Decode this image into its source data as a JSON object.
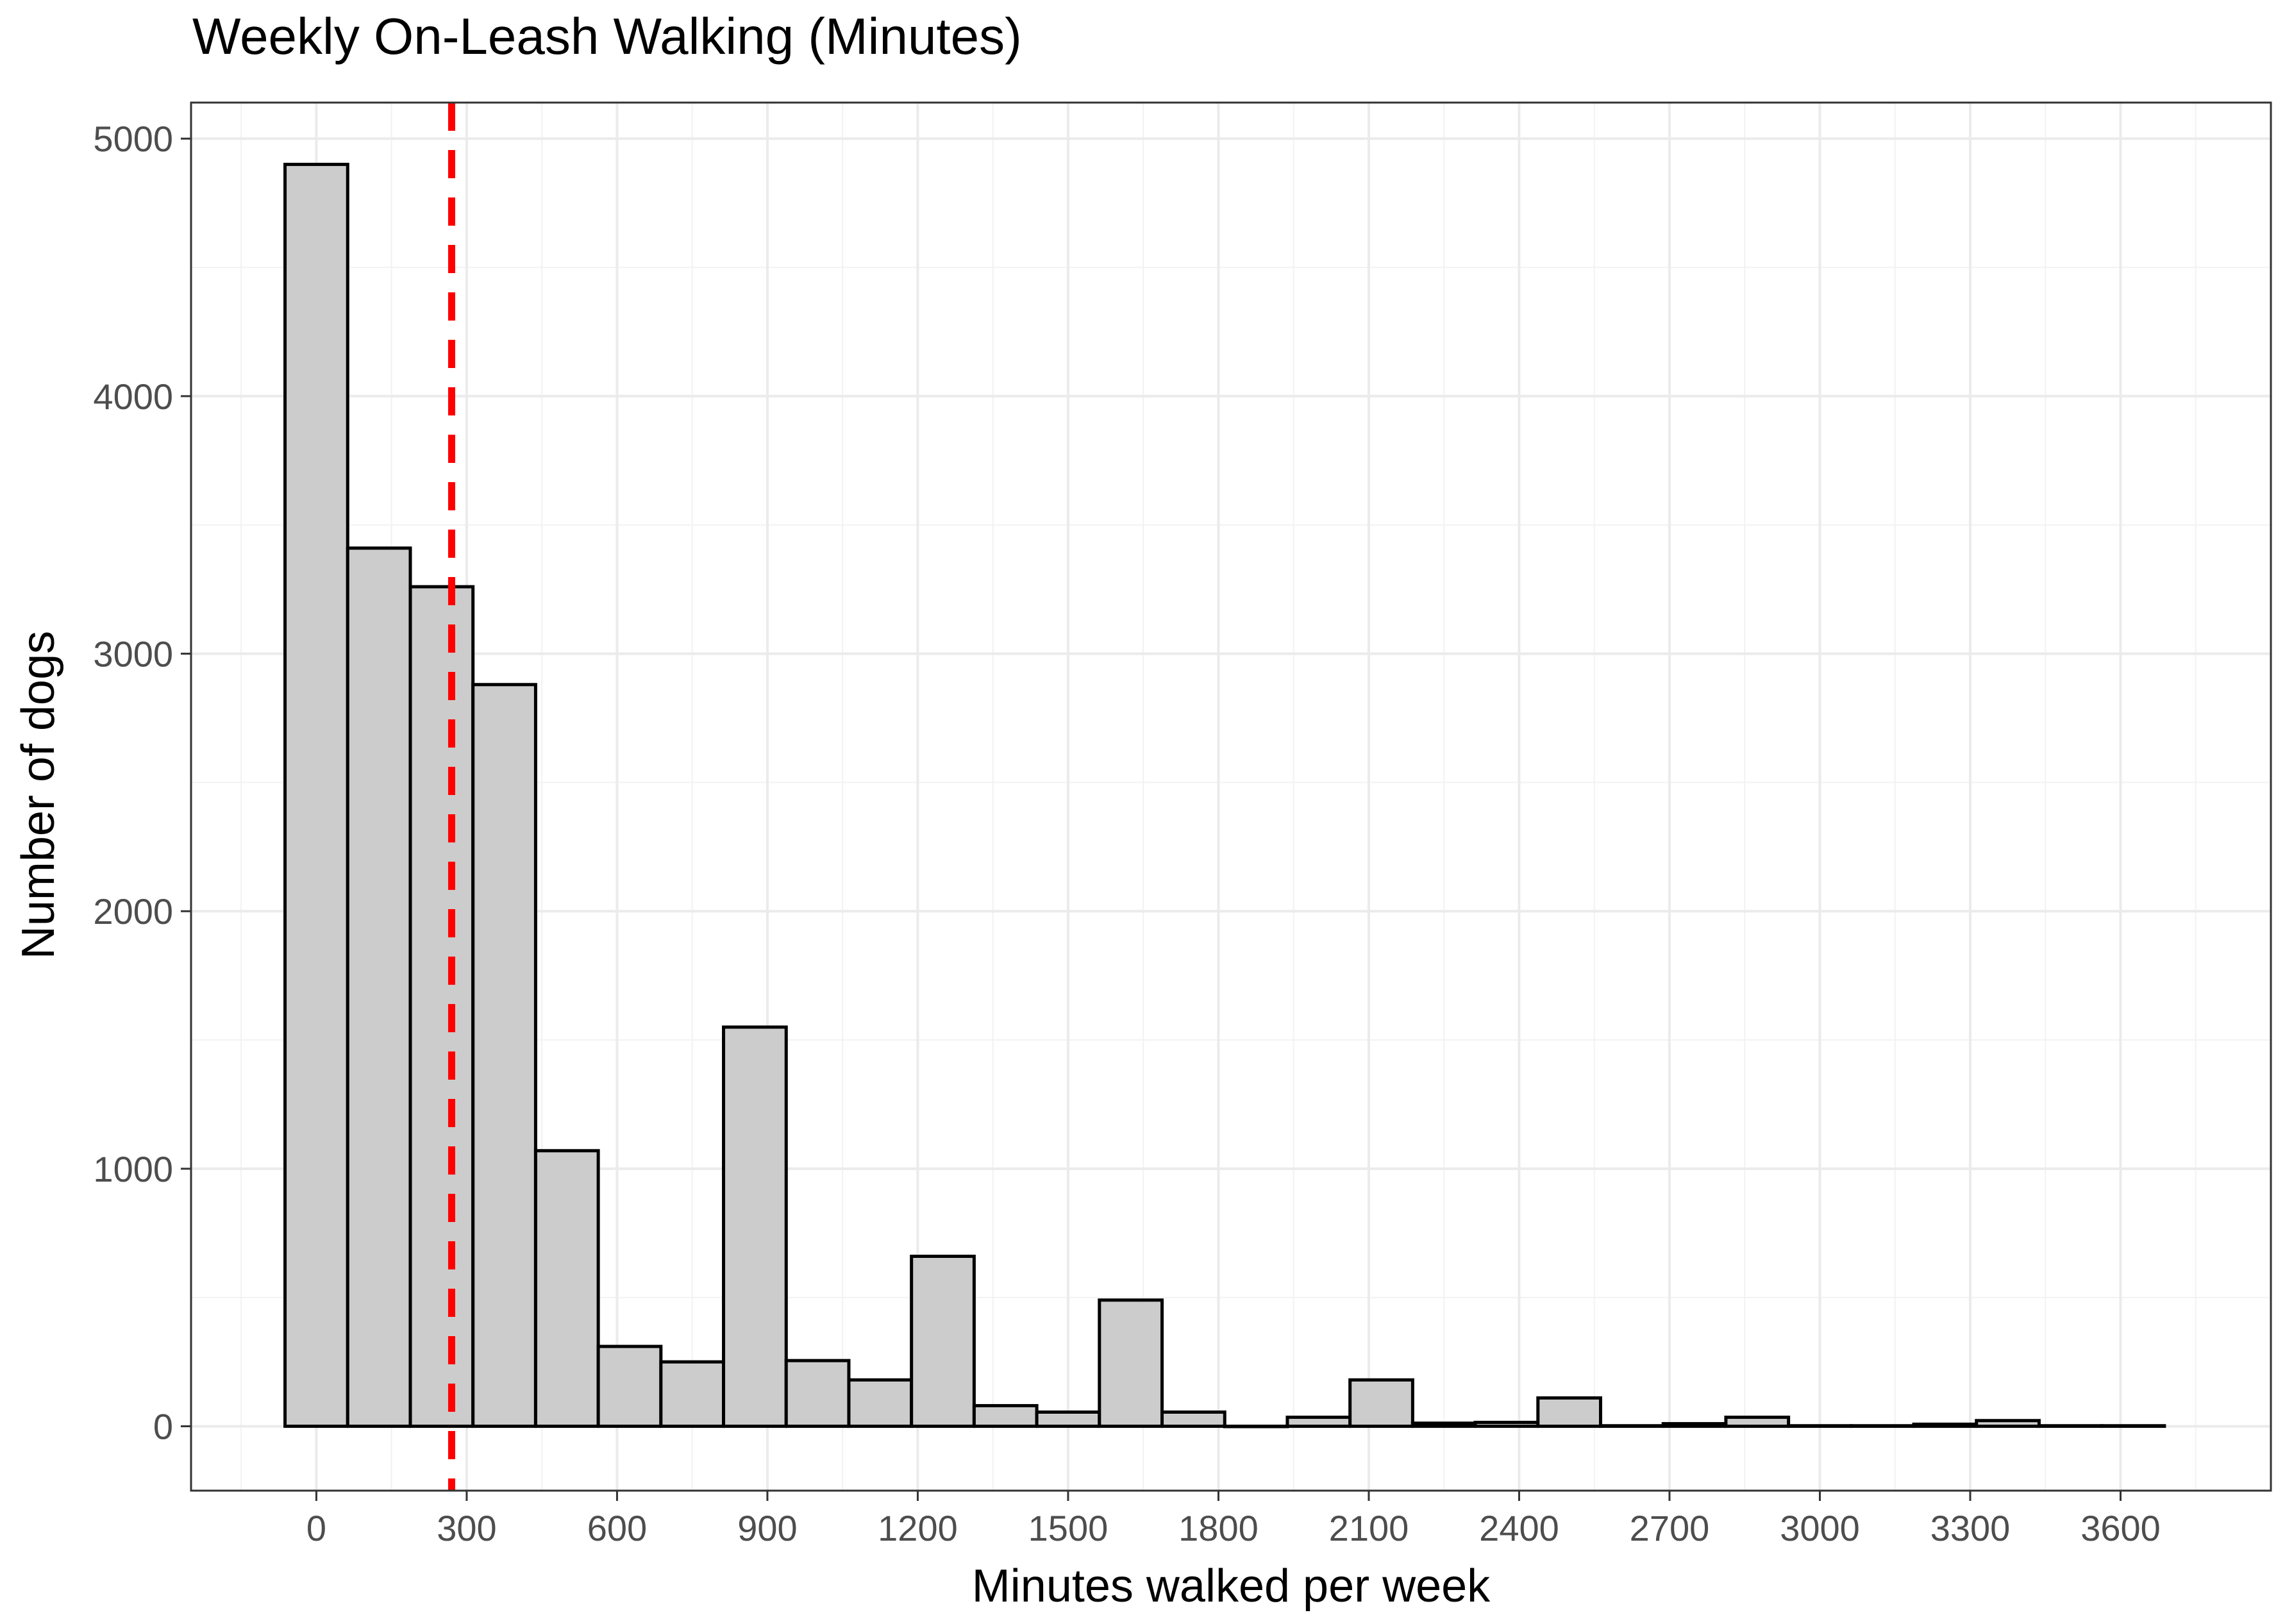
{
  "chart_data": {
    "type": "bar",
    "title": "Weekly On-Leash Walking (Minutes)",
    "xlabel": "Minutes walked per week",
    "ylabel": "Number of dogs",
    "bin_width": 125,
    "bins": [
      {
        "x": 0,
        "count": 4900
      },
      {
        "x": 125,
        "count": 3410
      },
      {
        "x": 250,
        "count": 3260
      },
      {
        "x": 375,
        "count": 2880
      },
      {
        "x": 500,
        "count": 1070
      },
      {
        "x": 625,
        "count": 310
      },
      {
        "x": 750,
        "count": 250
      },
      {
        "x": 875,
        "count": 1550
      },
      {
        "x": 1000,
        "count": 255
      },
      {
        "x": 1125,
        "count": 180
      },
      {
        "x": 1250,
        "count": 660
      },
      {
        "x": 1375,
        "count": 80
      },
      {
        "x": 1500,
        "count": 55
      },
      {
        "x": 1625,
        "count": 490
      },
      {
        "x": 1750,
        "count": 55
      },
      {
        "x": 1875,
        "count": 0
      },
      {
        "x": 2000,
        "count": 35
      },
      {
        "x": 2125,
        "count": 180
      },
      {
        "x": 2250,
        "count": 12
      },
      {
        "x": 2375,
        "count": 15
      },
      {
        "x": 2500,
        "count": 110
      },
      {
        "x": 2625,
        "count": 2
      },
      {
        "x": 2750,
        "count": 10
      },
      {
        "x": 2875,
        "count": 35
      },
      {
        "x": 3000,
        "count": 2
      },
      {
        "x": 3125,
        "count": 2
      },
      {
        "x": 3250,
        "count": 8
      },
      {
        "x": 3375,
        "count": 22
      },
      {
        "x": 3500,
        "count": 2
      },
      {
        "x": 3625,
        "count": 2
      }
    ],
    "reference_line": {
      "x": 270,
      "style": "dashed",
      "color": "#ff0000"
    },
    "x_ticks": [
      "0",
      "300",
      "600",
      "900",
      "1200",
      "1500",
      "1800",
      "2100",
      "2400",
      "2700",
      "3000",
      "3300",
      "3600"
    ],
    "y_ticks": [
      "0",
      "1000",
      "2000",
      "3000",
      "4000",
      "5000"
    ],
    "xlim": [
      -250,
      3900
    ],
    "ylim": [
      -250,
      5140
    ],
    "bar_fill": "#cccccc",
    "bar_stroke": "#000000",
    "grid": true
  }
}
